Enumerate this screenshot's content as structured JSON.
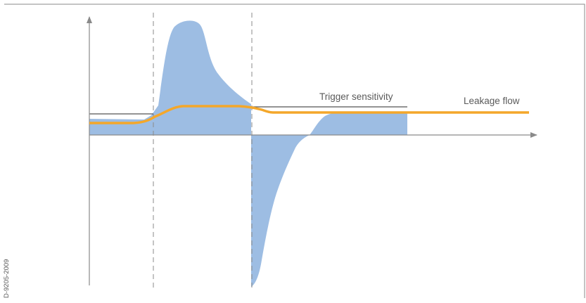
{
  "labels": {
    "trigger_sensitivity": "Trigger sensitivity",
    "leakage_flow": "Leakage flow",
    "figure_code": "D-9205-2009"
  },
  "colors": {
    "flow_fill": "#9dbde3",
    "leakage_line": "#f4a72a",
    "axis": "#8a8a8a",
    "dashed": "#8a8a8a",
    "trigger_line": "#555555",
    "text": "#5a5a5a",
    "border": "#8a8a8a"
  }
}
